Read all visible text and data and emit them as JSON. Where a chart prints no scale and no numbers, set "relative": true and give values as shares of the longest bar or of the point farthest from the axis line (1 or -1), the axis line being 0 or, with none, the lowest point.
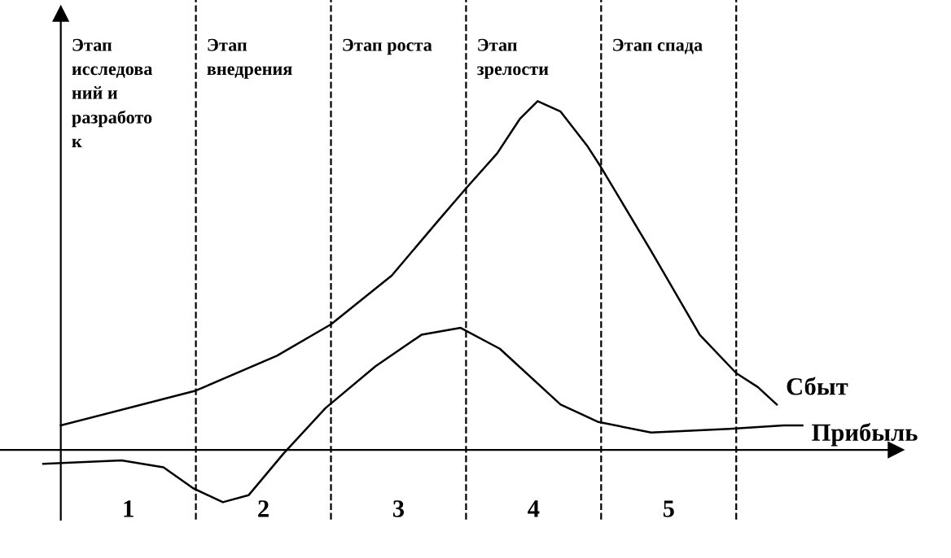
{
  "chart_data": {
    "type": "line",
    "relative": true,
    "legend": false,
    "grid": false,
    "marker": "none",
    "line_style": "solid",
    "xlim": [
      0.05,
      6.68
    ],
    "xticks": [
      1,
      2,
      3,
      4,
      5
    ],
    "ref_lines": [
      {
        "axis": "x",
        "value": 0.5,
        "line_style": "solid"
      },
      {
        "axis": "x",
        "value": 1.5,
        "line_style": "dashed"
      },
      {
        "axis": "x",
        "value": 2.5,
        "line_style": "dashed"
      },
      {
        "axis": "x",
        "value": 3.5,
        "line_style": "dashed"
      },
      {
        "axis": "x",
        "value": 4.5,
        "line_style": "dashed"
      },
      {
        "axis": "x",
        "value": 5.5,
        "line_style": "dashed"
      }
    ],
    "annotations": [
      "Этап\nисследова\nний и\nразработо\nк",
      "Этап\nвнедрения",
      "Этап роста",
      "Этап\nзрелости",
      "Этап спада"
    ],
    "series": [
      {
        "name": "Сбыт",
        "color": "#000000",
        "x": [
          0.5,
          1.5,
          2.1,
          2.5,
          2.95,
          3.3,
          3.5,
          3.73,
          3.9,
          4.03,
          4.2,
          4.4,
          4.5,
          4.87,
          5.23,
          5.5,
          5.66,
          5.8
        ],
        "values": [
          0.07,
          0.17,
          0.27,
          0.36,
          0.5,
          0.66,
          0.75,
          0.85,
          0.95,
          1.0,
          0.97,
          0.87,
          0.81,
          0.57,
          0.33,
          0.22,
          0.18,
          0.13
        ]
      },
      {
        "name": "Прибыль",
        "color": "#000000",
        "x": [
          0.37,
          0.95,
          1.26,
          1.48,
          1.7,
          1.89,
          2.15,
          2.46,
          2.83,
          3.17,
          3.46,
          3.75,
          4.2,
          4.48,
          4.87,
          5.45,
          5.85,
          5.99
        ],
        "values": [
          -0.04,
          -0.03,
          -0.05,
          -0.11,
          -0.15,
          -0.13,
          -0.01,
          0.12,
          0.24,
          0.33,
          0.35,
          0.29,
          0.13,
          0.08,
          0.05,
          0.06,
          0.07,
          0.07
        ]
      }
    ]
  }
}
